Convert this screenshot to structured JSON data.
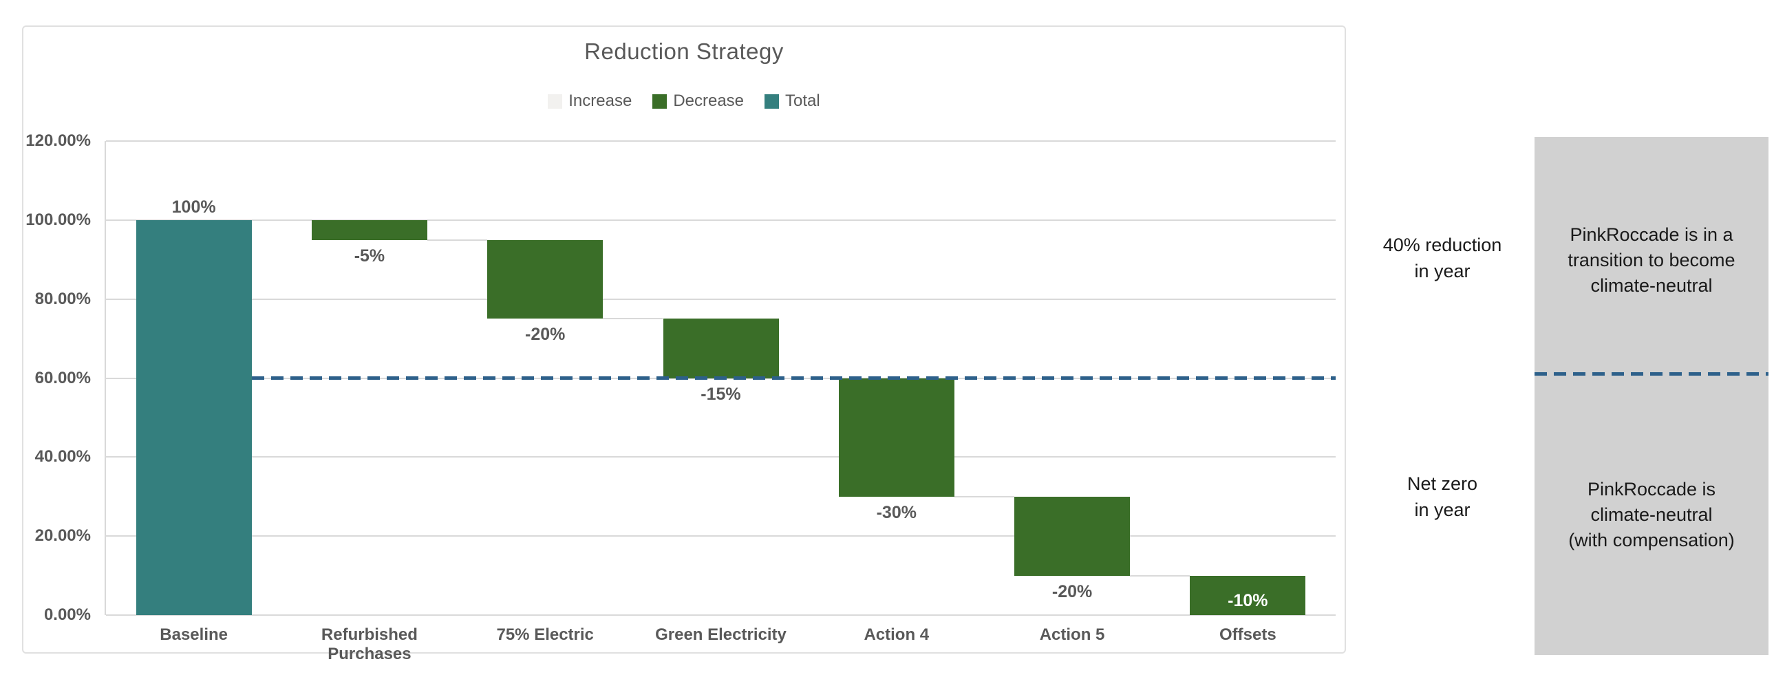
{
  "chart": {
    "title": "Reduction Strategy",
    "legend": [
      {
        "label": "Increase",
        "color": "#F2F1EF"
      },
      {
        "label": "Decrease",
        "color": "#3A6E28"
      },
      {
        "label": "Total",
        "color": "#347F7E"
      }
    ]
  },
  "chart_data": {
    "type": "bar",
    "subtype": "waterfall",
    "title": "Reduction Strategy",
    "categories": [
      "Baseline",
      "Refurbished Purchases",
      "75% Electric",
      "Green Electricity",
      "Action 4",
      "Action 5",
      "Offsets"
    ],
    "values": [
      100,
      -5,
      -20,
      -15,
      -30,
      -20,
      -10
    ],
    "bar_labels": [
      "100%",
      "-5%",
      "-20%",
      "-15%",
      "-30%",
      "-20%",
      "-10%"
    ],
    "segments": [
      [
        0,
        100
      ],
      [
        95,
        100
      ],
      [
        75,
        95
      ],
      [
        60,
        75
      ],
      [
        30,
        60
      ],
      [
        10,
        30
      ],
      [
        0,
        10
      ]
    ],
    "bar_roles": [
      "total",
      "decrease",
      "decrease",
      "decrease",
      "decrease",
      "decrease",
      "decrease"
    ],
    "y_ticks": [
      "120.00%",
      "100.00%",
      "80.00%",
      "60.00%",
      "40.00%",
      "20.00%",
      "0.00%"
    ],
    "y_tick_values": [
      120,
      100,
      80,
      60,
      40,
      20,
      0
    ],
    "ylim": [
      0,
      120
    ],
    "grid": true,
    "legend_entries": [
      "Increase",
      "Decrease",
      "Total"
    ],
    "legend_position": "top-center",
    "reference_line": {
      "value": 60,
      "style": "dashed",
      "color": "#2D608A"
    }
  },
  "annotations": {
    "reduction_goal": {
      "lines": [
        "40% reduction",
        "in year"
      ]
    },
    "net_zero_goal": {
      "lines": [
        "Net zero",
        "in year"
      ]
    },
    "panel_transition": {
      "lines": [
        "PinkRoccade is in a",
        "transition to become",
        "climate-neutral"
      ]
    },
    "panel_neutral": {
      "lines": [
        "PinkRoccade is",
        "climate-neutral",
        "(with compensation)"
      ]
    }
  },
  "colors": {
    "bar_total": "#347F7E",
    "bar_decrease": "#3A6E28",
    "bar_increase": "#F2F1EF",
    "reference_line": "#2D608A",
    "gridline": "#D9D9D9",
    "axis_text": "#595959",
    "annotation_text": "#1A1A1A",
    "panel_background": "#D1D1D1",
    "card_border": "#E0E0E0",
    "background": "#FFFFFF"
  }
}
